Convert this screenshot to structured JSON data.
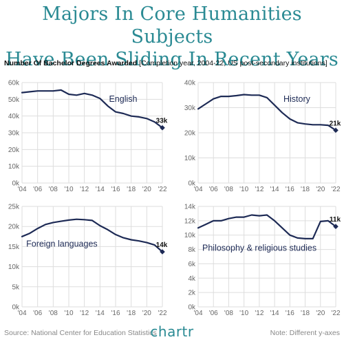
{
  "title_line1": "Majors In Core Humanities Subjects",
  "title_line2": "Have Been Sliding In Recent Years",
  "subtitle_bold": "Number Of Bachelor Degrees Awarded",
  "subtitle_detail": "[Completion year, 2004-22, US post-secondary institutions]",
  "footer_source": "Source: National Center for Education Statistics",
  "footer_note": "Note: Different y-axes",
  "logo": "chartr",
  "colors": {
    "title": "#2a8a93",
    "line": "#1d2a55",
    "grid": "#dddddd"
  },
  "chart_data": [
    {
      "type": "line",
      "label": "English",
      "end_label": "33k",
      "ylim": [
        0,
        60000
      ],
      "yticks": [
        0,
        10000,
        20000,
        30000,
        40000,
        50000,
        60000
      ],
      "ytick_labels": [
        "0k",
        "10k",
        "20k",
        "30k",
        "40k",
        "50k",
        "60k"
      ],
      "xticks": [
        2004,
        2006,
        2008,
        2010,
        2012,
        2014,
        2016,
        2018,
        2020,
        2022
      ],
      "xtick_labels": [
        "'04",
        "'06",
        "'08",
        "'10",
        "'12",
        "'14",
        "'16",
        "'18",
        "'20",
        "'22"
      ],
      "x": [
        2004,
        2005,
        2006,
        2007,
        2008,
        2009,
        2010,
        2011,
        2012,
        2013,
        2014,
        2015,
        2016,
        2017,
        2018,
        2019,
        2020,
        2021,
        2022
      ],
      "values": [
        54000,
        54500,
        55000,
        55000,
        55000,
        55500,
        53000,
        52500,
        53500,
        52500,
        50500,
        46000,
        42500,
        41500,
        40000,
        39500,
        38500,
        36500,
        33000
      ]
    },
    {
      "type": "line",
      "label": "History",
      "end_label": "21k",
      "ylim": [
        0,
        40000
      ],
      "yticks": [
        0,
        10000,
        20000,
        30000,
        40000
      ],
      "ytick_labels": [
        "0k",
        "10k",
        "20k",
        "30k",
        "40k"
      ],
      "xticks": [
        2004,
        2006,
        2008,
        2010,
        2012,
        2014,
        2016,
        2018,
        2020,
        2022
      ],
      "xtick_labels": [
        "'04",
        "'06",
        "'08",
        "'10",
        "'12",
        "'14",
        "'16",
        "'18",
        "'20",
        "'22"
      ],
      "x": [
        2004,
        2005,
        2006,
        2007,
        2008,
        2009,
        2010,
        2011,
        2012,
        2013,
        2014,
        2015,
        2016,
        2017,
        2018,
        2019,
        2020,
        2021,
        2022
      ],
      "values": [
        29500,
        31500,
        33500,
        34500,
        34500,
        34800,
        35200,
        35000,
        35000,
        34000,
        31000,
        28000,
        25500,
        24000,
        23500,
        23200,
        23200,
        23000,
        21000
      ]
    },
    {
      "type": "line",
      "label": "Foreign languages",
      "end_label": "14k",
      "ylim": [
        0,
        25000
      ],
      "yticks": [
        0,
        5000,
        10000,
        15000,
        20000,
        25000
      ],
      "ytick_labels": [
        "0k",
        "5k",
        "10k",
        "15k",
        "20k",
        "25k"
      ],
      "xticks": [
        2004,
        2006,
        2008,
        2010,
        2012,
        2014,
        2016,
        2018,
        2020,
        2022
      ],
      "xtick_labels": [
        "'04",
        "'06",
        "'08",
        "'10",
        "'12",
        "'14",
        "'16",
        "'18",
        "'20",
        "'22"
      ],
      "x": [
        2004,
        2005,
        2006,
        2007,
        2008,
        2009,
        2010,
        2011,
        2012,
        2013,
        2014,
        2015,
        2016,
        2017,
        2018,
        2019,
        2020,
        2021,
        2022
      ],
      "values": [
        17500,
        18300,
        19500,
        20500,
        21000,
        21300,
        21600,
        21800,
        21700,
        21500,
        20200,
        19200,
        18000,
        17200,
        16700,
        16400,
        16000,
        15400,
        13700
      ]
    },
    {
      "type": "line",
      "label": "Philosophy & religious studies",
      "end_label": "11k",
      "ylim": [
        0,
        14000
      ],
      "yticks": [
        0,
        2000,
        4000,
        6000,
        8000,
        10000,
        12000,
        14000
      ],
      "ytick_labels": [
        "0k",
        "2k",
        "4k",
        "6k",
        "8k",
        "10k",
        "12k",
        "14k"
      ],
      "xticks": [
        2004,
        2006,
        2008,
        2010,
        2012,
        2014,
        2016,
        2018,
        2020,
        2022
      ],
      "xtick_labels": [
        "'04",
        "'06",
        "'08",
        "'10",
        "'12",
        "'14",
        "'16",
        "'18",
        "'20",
        "'22"
      ],
      "x": [
        2004,
        2005,
        2006,
        2007,
        2008,
        2009,
        2010,
        2011,
        2012,
        2013,
        2014,
        2015,
        2016,
        2017,
        2018,
        2019,
        2020,
        2021,
        2022
      ],
      "values": [
        11000,
        11500,
        12000,
        12000,
        12300,
        12500,
        12500,
        12800,
        12700,
        12800,
        12000,
        11000,
        10000,
        9600,
        9500,
        9500,
        11900,
        12000,
        11200
      ]
    }
  ]
}
